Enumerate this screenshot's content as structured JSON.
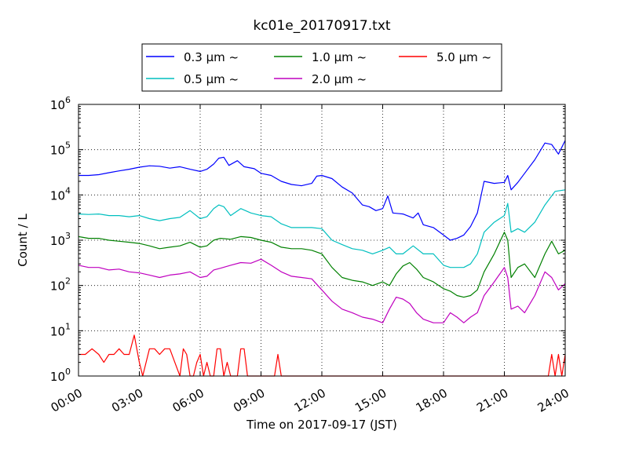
{
  "chart_data": {
    "type": "line",
    "title": "kc01e_20170917.txt",
    "xlabel": "Time on 2017-09-17 (JST)",
    "ylabel": "Count / L",
    "y_scale": "log",
    "ylim": [
      1,
      1000000
    ],
    "xlim": [
      "00:00",
      "24:00"
    ],
    "x_ticks": [
      "00:00",
      "03:00",
      "06:00",
      "09:00",
      "12:00",
      "15:00",
      "18:00",
      "21:00",
      "24:00"
    ],
    "y_ticks": [
      {
        "base": "10",
        "exp": "0",
        "value": 1
      },
      {
        "base": "10",
        "exp": "1",
        "value": 10
      },
      {
        "base": "10",
        "exp": "2",
        "value": 100
      },
      {
        "base": "10",
        "exp": "3",
        "value": 1000
      },
      {
        "base": "10",
        "exp": "4",
        "value": 10000
      },
      {
        "base": "10",
        "exp": "5",
        "value": 100000
      },
      {
        "base": "10",
        "exp": "6",
        "value": 1000000
      }
    ],
    "grid": true,
    "legend_position": "top-center",
    "series": [
      {
        "name": "0.3 μm ~",
        "color": "#0000ff",
        "points": [
          [
            "00:00",
            27000
          ],
          [
            "00:30",
            27000
          ],
          [
            "01:00",
            28000
          ],
          [
            "01:30",
            31000
          ],
          [
            "02:00",
            34000
          ],
          [
            "02:30",
            37000
          ],
          [
            "03:00",
            41000
          ],
          [
            "03:30",
            44000
          ],
          [
            "04:00",
            43000
          ],
          [
            "04:30",
            39000
          ],
          [
            "05:00",
            42000
          ],
          [
            "05:30",
            37000
          ],
          [
            "06:00",
            33000
          ],
          [
            "06:20",
            37000
          ],
          [
            "06:40",
            48000
          ],
          [
            "06:55",
            65000
          ],
          [
            "07:10",
            68000
          ],
          [
            "07:25",
            45000
          ],
          [
            "07:50",
            57000
          ],
          [
            "08:10",
            42000
          ],
          [
            "08:40",
            38000
          ],
          [
            "09:00",
            30000
          ],
          [
            "09:30",
            27000
          ],
          [
            "10:00",
            20000
          ],
          [
            "10:30",
            17000
          ],
          [
            "11:00",
            16000
          ],
          [
            "11:30",
            18000
          ],
          [
            "11:45",
            26000
          ],
          [
            "12:00",
            27000
          ],
          [
            "12:30",
            23000
          ],
          [
            "13:00",
            15000
          ],
          [
            "13:30",
            11000
          ],
          [
            "14:00",
            6000
          ],
          [
            "14:20",
            5500
          ],
          [
            "14:40",
            4500
          ],
          [
            "15:00",
            5000
          ],
          [
            "15:15",
            9500
          ],
          [
            "15:30",
            4000
          ],
          [
            "16:00",
            3800
          ],
          [
            "16:30",
            3100
          ],
          [
            "16:45",
            4000
          ],
          [
            "17:00",
            2200
          ],
          [
            "17:30",
            1900
          ],
          [
            "18:00",
            1300
          ],
          [
            "18:20",
            1000
          ],
          [
            "18:40",
            1100
          ],
          [
            "19:00",
            1300
          ],
          [
            "19:20",
            2000
          ],
          [
            "19:40",
            4000
          ],
          [
            "20:00",
            20000
          ],
          [
            "20:30",
            18000
          ],
          [
            "21:00",
            19000
          ],
          [
            "21:10",
            27000
          ],
          [
            "21:20",
            13000
          ],
          [
            "21:40",
            19000
          ],
          [
            "22:00",
            30000
          ],
          [
            "22:30",
            60000
          ],
          [
            "23:00",
            140000
          ],
          [
            "23:20",
            130000
          ],
          [
            "23:40",
            80000
          ],
          [
            "24:00",
            160000
          ]
        ]
      },
      {
        "name": "0.5 μm ~",
        "color": "#00bfbf",
        "points": [
          [
            "00:00",
            3800
          ],
          [
            "00:30",
            3700
          ],
          [
            "01:00",
            3800
          ],
          [
            "01:30",
            3500
          ],
          [
            "02:00",
            3500
          ],
          [
            "02:30",
            3300
          ],
          [
            "03:00",
            3500
          ],
          [
            "03:30",
            3000
          ],
          [
            "04:00",
            2700
          ],
          [
            "04:30",
            3000
          ],
          [
            "05:00",
            3200
          ],
          [
            "05:30",
            4500
          ],
          [
            "06:00",
            3000
          ],
          [
            "06:20",
            3300
          ],
          [
            "06:40",
            5000
          ],
          [
            "06:55",
            6000
          ],
          [
            "07:10",
            5500
          ],
          [
            "07:30",
            3500
          ],
          [
            "08:00",
            5000
          ],
          [
            "08:30",
            4000
          ],
          [
            "09:00",
            3500
          ],
          [
            "09:30",
            3300
          ],
          [
            "10:00",
            2300
          ],
          [
            "10:30",
            1900
          ],
          [
            "11:00",
            1900
          ],
          [
            "11:30",
            1900
          ],
          [
            "12:00",
            1800
          ],
          [
            "12:30",
            1000
          ],
          [
            "13:00",
            800
          ],
          [
            "13:30",
            650
          ],
          [
            "14:00",
            600
          ],
          [
            "14:30",
            500
          ],
          [
            "15:00",
            600
          ],
          [
            "15:20",
            700
          ],
          [
            "15:40",
            500
          ],
          [
            "16:00",
            500
          ],
          [
            "16:30",
            750
          ],
          [
            "17:00",
            500
          ],
          [
            "17:30",
            500
          ],
          [
            "18:00",
            280
          ],
          [
            "18:20",
            250
          ],
          [
            "19:00",
            250
          ],
          [
            "19:20",
            300
          ],
          [
            "19:40",
            500
          ],
          [
            "20:00",
            1500
          ],
          [
            "20:30",
            2500
          ],
          [
            "21:00",
            3500
          ],
          [
            "21:10",
            6500
          ],
          [
            "21:20",
            1500
          ],
          [
            "21:40",
            1800
          ],
          [
            "22:00",
            1500
          ],
          [
            "22:30",
            2500
          ],
          [
            "23:00",
            6000
          ],
          [
            "23:30",
            12000
          ],
          [
            "24:00",
            13000
          ]
        ]
      },
      {
        "name": "1.0 μm ~",
        "color": "#008000",
        "points": [
          [
            "00:00",
            1200
          ],
          [
            "00:30",
            1100
          ],
          [
            "01:00",
            1100
          ],
          [
            "01:30",
            1000
          ],
          [
            "02:00",
            950
          ],
          [
            "02:30",
            900
          ],
          [
            "03:00",
            850
          ],
          [
            "03:30",
            750
          ],
          [
            "04:00",
            650
          ],
          [
            "04:30",
            700
          ],
          [
            "05:00",
            750
          ],
          [
            "05:30",
            900
          ],
          [
            "06:00",
            700
          ],
          [
            "06:20",
            750
          ],
          [
            "06:40",
            1000
          ],
          [
            "07:00",
            1100
          ],
          [
            "07:30",
            1050
          ],
          [
            "08:00",
            1200
          ],
          [
            "08:30",
            1150
          ],
          [
            "09:00",
            1000
          ],
          [
            "09:30",
            900
          ],
          [
            "10:00",
            700
          ],
          [
            "10:30",
            650
          ],
          [
            "11:00",
            650
          ],
          [
            "11:30",
            600
          ],
          [
            "12:00",
            500
          ],
          [
            "12:30",
            250
          ],
          [
            "13:00",
            150
          ],
          [
            "13:30",
            130
          ],
          [
            "14:00",
            120
          ],
          [
            "14:30",
            100
          ],
          [
            "15:00",
            120
          ],
          [
            "15:20",
            100
          ],
          [
            "15:40",
            180
          ],
          [
            "16:00",
            270
          ],
          [
            "16:20",
            320
          ],
          [
            "16:40",
            230
          ],
          [
            "17:00",
            150
          ],
          [
            "17:30",
            120
          ],
          [
            "18:00",
            85
          ],
          [
            "18:20",
            75
          ],
          [
            "18:40",
            60
          ],
          [
            "19:00",
            55
          ],
          [
            "19:20",
            60
          ],
          [
            "19:40",
            80
          ],
          [
            "20:00",
            200
          ],
          [
            "20:30",
            500
          ],
          [
            "21:00",
            1500
          ],
          [
            "21:10",
            1000
          ],
          [
            "21:20",
            150
          ],
          [
            "21:40",
            250
          ],
          [
            "22:00",
            300
          ],
          [
            "22:30",
            150
          ],
          [
            "23:00",
            500
          ],
          [
            "23:20",
            950
          ],
          [
            "23:40",
            500
          ],
          [
            "24:00",
            600
          ]
        ]
      },
      {
        "name": "2.0 μm ~",
        "color": "#bf00bf",
        "points": [
          [
            "00:00",
            280
          ],
          [
            "00:30",
            250
          ],
          [
            "01:00",
            250
          ],
          [
            "01:30",
            220
          ],
          [
            "02:00",
            230
          ],
          [
            "02:30",
            200
          ],
          [
            "03:00",
            190
          ],
          [
            "03:30",
            170
          ],
          [
            "04:00",
            150
          ],
          [
            "04:30",
            170
          ],
          [
            "05:00",
            180
          ],
          [
            "05:30",
            200
          ],
          [
            "06:00",
            150
          ],
          [
            "06:20",
            160
          ],
          [
            "06:40",
            220
          ],
          [
            "07:00",
            240
          ],
          [
            "07:30",
            280
          ],
          [
            "08:00",
            320
          ],
          [
            "08:30",
            310
          ],
          [
            "09:00",
            380
          ],
          [
            "09:30",
            280
          ],
          [
            "10:00",
            200
          ],
          [
            "10:30",
            160
          ],
          [
            "11:00",
            150
          ],
          [
            "11:30",
            140
          ],
          [
            "12:00",
            80
          ],
          [
            "12:30",
            45
          ],
          [
            "13:00",
            30
          ],
          [
            "13:30",
            25
          ],
          [
            "14:00",
            20
          ],
          [
            "14:30",
            18
          ],
          [
            "15:00",
            15
          ],
          [
            "15:20",
            30
          ],
          [
            "15:40",
            55
          ],
          [
            "16:00",
            50
          ],
          [
            "16:20",
            40
          ],
          [
            "16:40",
            25
          ],
          [
            "17:00",
            18
          ],
          [
            "17:30",
            15
          ],
          [
            "18:00",
            15
          ],
          [
            "18:20",
            25
          ],
          [
            "18:40",
            20
          ],
          [
            "19:00",
            15
          ],
          [
            "19:20",
            20
          ],
          [
            "19:40",
            25
          ],
          [
            "20:00",
            60
          ],
          [
            "20:30",
            120
          ],
          [
            "21:00",
            250
          ],
          [
            "21:10",
            150
          ],
          [
            "21:20",
            30
          ],
          [
            "21:40",
            35
          ],
          [
            "22:00",
            25
          ],
          [
            "22:30",
            60
          ],
          [
            "23:00",
            200
          ],
          [
            "23:20",
            150
          ],
          [
            "23:40",
            80
          ],
          [
            "24:00",
            110
          ]
        ]
      },
      {
        "name": "5.0 μm ~",
        "color": "#ff0000",
        "points": [
          [
            "00:00",
            3
          ],
          [
            "00:20",
            3
          ],
          [
            "00:40",
            4
          ],
          [
            "01:00",
            3
          ],
          [
            "01:15",
            2
          ],
          [
            "01:30",
            3
          ],
          [
            "01:45",
            3
          ],
          [
            "02:00",
            4
          ],
          [
            "02:15",
            3
          ],
          [
            "02:30",
            3
          ],
          [
            "02:45",
            8
          ],
          [
            "03:00",
            2
          ],
          [
            "03:10",
            1
          ],
          [
            "03:20",
            2
          ],
          [
            "03:30",
            4
          ],
          [
            "03:45",
            4
          ],
          [
            "04:00",
            3
          ],
          [
            "04:15",
            4
          ],
          [
            "04:30",
            4
          ],
          [
            "04:45",
            2
          ],
          [
            "05:00",
            1
          ],
          [
            "05:10",
            4
          ],
          [
            "05:20",
            3
          ],
          [
            "05:30",
            1
          ],
          [
            "05:40",
            1
          ],
          [
            "05:50",
            2
          ],
          [
            "06:00",
            3
          ],
          [
            "06:10",
            1
          ],
          [
            "06:20",
            2
          ],
          [
            "06:30",
            1
          ],
          [
            "06:40",
            1
          ],
          [
            "06:50",
            4
          ],
          [
            "07:00",
            4
          ],
          [
            "07:10",
            1
          ],
          [
            "07:20",
            2
          ],
          [
            "07:30",
            1
          ],
          [
            "07:40",
            1
          ],
          [
            "07:50",
            1
          ],
          [
            "08:00",
            4
          ],
          [
            "08:10",
            4
          ],
          [
            "08:20",
            1
          ],
          [
            "08:30",
            1
          ],
          [
            "09:00",
            1
          ],
          [
            "09:10",
            1
          ],
          [
            "09:20",
            1
          ],
          [
            "09:30",
            1
          ],
          [
            "09:40",
            1
          ],
          [
            "09:50",
            3
          ],
          [
            "10:00",
            1
          ],
          [
            "10:10",
            1
          ],
          [
            "21:20",
            1
          ],
          [
            "21:30",
            1
          ],
          [
            "21:40",
            1
          ],
          [
            "22:00",
            1
          ],
          [
            "22:30",
            1
          ],
          [
            "23:00",
            1
          ],
          [
            "23:10",
            1
          ],
          [
            "23:20",
            3
          ],
          [
            "23:30",
            1
          ],
          [
            "23:40",
            3
          ],
          [
            "23:50",
            1
          ],
          [
            "24:00",
            3
          ]
        ]
      }
    ]
  }
}
